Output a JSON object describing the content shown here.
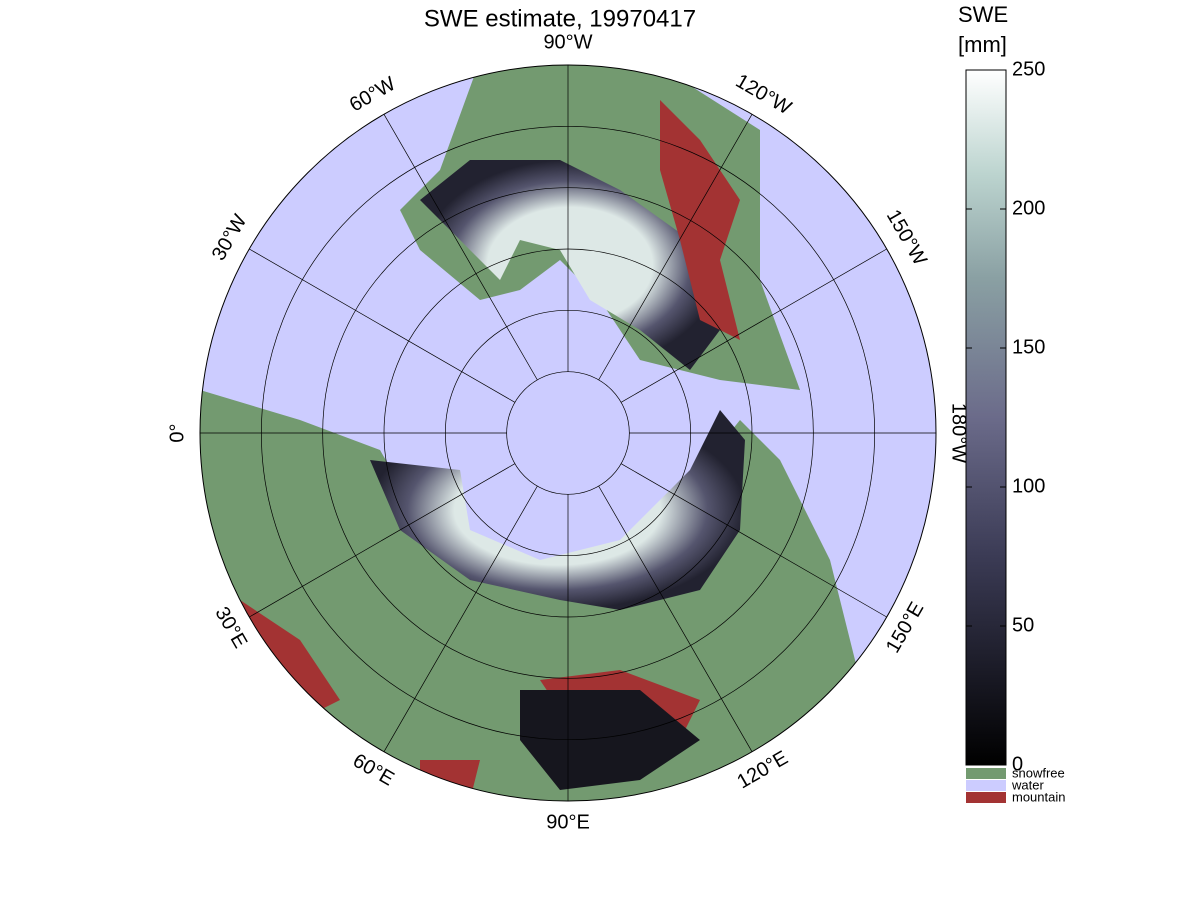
{
  "title": "SWE estimate, 19970417",
  "map": {
    "longitude_labels": [
      "0°",
      "30°W",
      "60°W",
      "90°W",
      "120°W",
      "150°W",
      "180°W",
      "150°E",
      "120°E",
      "90°E",
      "60°E",
      "30°E"
    ]
  },
  "colorbar": {
    "title_lines": [
      "SWE",
      "[mm]"
    ],
    "lim": [
      0,
      250
    ],
    "ticks": [
      0,
      50,
      100,
      150,
      200,
      250
    ],
    "legend": [
      {
        "name": "snowfree",
        "color": "#739a70"
      },
      {
        "name": "water",
        "color": "#ccccff"
      },
      {
        "name": "mountain",
        "color": "#a33333"
      }
    ]
  }
}
